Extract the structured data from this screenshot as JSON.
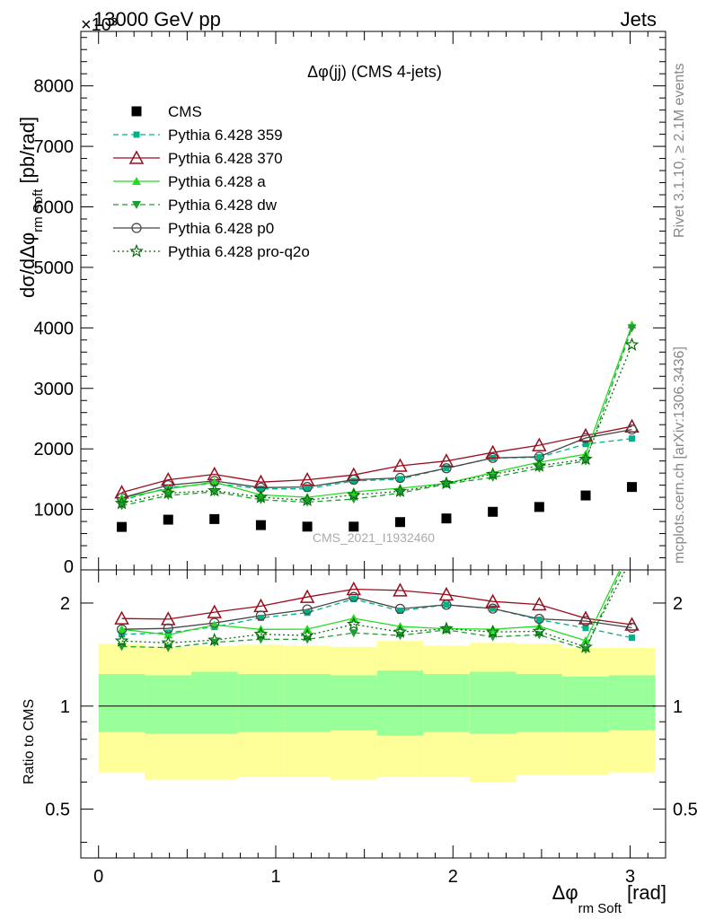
{
  "header": {
    "energy_label": "13000 GeV pp",
    "process_label": "Jets",
    "exponent_label": "×10³",
    "side_label_top": "Rivet 3.1.10, ≥ 2.1M events",
    "side_label_bottom": "mcplots.cern.ch [arXiv:1306.3436]",
    "watermark": "CMS_2021_I1932460"
  },
  "chart_data": {
    "type": "line",
    "title": "Δφ(jj) (CMS 4-jets)",
    "xlabel": "Δφ",
    "xlabel_sub": "rm Soft",
    "xlabel_unit": "[rad]",
    "ylabel": "dσ/dΔφ",
    "ylabel_sub": "rm Soft",
    "ylabel_unit": "[pb/rad]",
    "ratio_ylabel": "Ratio to CMS",
    "xlim": [
      -0.1,
      3.2
    ],
    "ylim": [
      0,
      8900
    ],
    "ratio_ylim": [
      0.36,
      2.5
    ],
    "ratio_log": true,
    "x_ticks": [
      "0",
      "1",
      "2",
      "3"
    ],
    "y_ticks": [
      "1000",
      "2000",
      "3000",
      "4000",
      "5000",
      "6000",
      "7000",
      "8000"
    ],
    "ratio_ticks": [
      "0.5",
      "1",
      "2"
    ],
    "x": [
      0.131,
      0.393,
      0.654,
      0.916,
      1.178,
      1.44,
      1.702,
      1.963,
      2.225,
      2.487,
      2.749,
      3.01
    ],
    "data": {
      "name": "CMS",
      "values": [
        710,
        830,
        840,
        740,
        715,
        715,
        790,
        850,
        960,
        1040,
        1230,
        1370
      ]
    },
    "band_edges": [
      0.0,
      0.262,
      0.524,
      0.785,
      1.047,
      1.309,
      1.571,
      1.833,
      2.094,
      2.356,
      2.618,
      2.88,
      3.142
    ],
    "band_stat_low": [
      0.84,
      0.83,
      0.83,
      0.84,
      0.84,
      0.85,
      0.82,
      0.84,
      0.83,
      0.84,
      0.84,
      0.85
    ],
    "band_stat_high": [
      1.24,
      1.23,
      1.26,
      1.24,
      1.24,
      1.23,
      1.27,
      1.24,
      1.26,
      1.24,
      1.22,
      1.23
    ],
    "band_total_low": [
      0.64,
      0.61,
      0.61,
      0.62,
      0.62,
      0.61,
      0.62,
      0.62,
      0.6,
      0.63,
      0.63,
      0.64
    ],
    "band_total_high": [
      1.52,
      1.49,
      1.5,
      1.51,
      1.5,
      1.49,
      1.55,
      1.5,
      1.53,
      1.52,
      1.48,
      1.48
    ],
    "series": [
      {
        "name": "Pythia 6.428 359",
        "color": "#00b386",
        "dash": "6,4",
        "marker": "square-filled",
        "values": [
          1150,
          1360,
          1430,
          1340,
          1340,
          1470,
          1500,
          1680,
          1850,
          1860,
          2080,
          2170
        ]
      },
      {
        "name": "Pythia 6.428 370",
        "color": "#9b0d1d",
        "dash": "",
        "marker": "triangle-open",
        "values": [
          1280,
          1490,
          1580,
          1450,
          1490,
          1570,
          1720,
          1800,
          1940,
          2060,
          2220,
          2370
        ]
      },
      {
        "name": "Pythia 6.428 a",
        "color": "#22dd22",
        "dash": "",
        "marker": "triangle-filled",
        "values": [
          1190,
          1340,
          1450,
          1240,
          1200,
          1290,
          1350,
          1430,
          1610,
          1780,
          1910,
          4050
        ]
      },
      {
        "name": "Pythia 6.428 dw",
        "color": "#1c9e30",
        "dash": "6,4",
        "marker": "triangle-down-filled",
        "values": [
          1060,
          1230,
          1290,
          1160,
          1120,
          1170,
          1270,
          1420,
          1530,
          1680,
          1800,
          4000
        ]
      },
      {
        "name": "Pythia 6.428 p0",
        "color": "#444444",
        "dash": "",
        "marker": "circle-open",
        "values": [
          1190,
          1400,
          1470,
          1360,
          1370,
          1490,
          1520,
          1680,
          1850,
          1870,
          2180,
          2320
        ]
      },
      {
        "name": "Pythia 6.428 pro-q2o",
        "color": "#0a6a0a",
        "dash": "2,3",
        "marker": "star-open",
        "values": [
          1100,
          1270,
          1310,
          1200,
          1150,
          1240,
          1300,
          1430,
          1580,
          1720,
          1830,
          3720
        ]
      }
    ]
  }
}
